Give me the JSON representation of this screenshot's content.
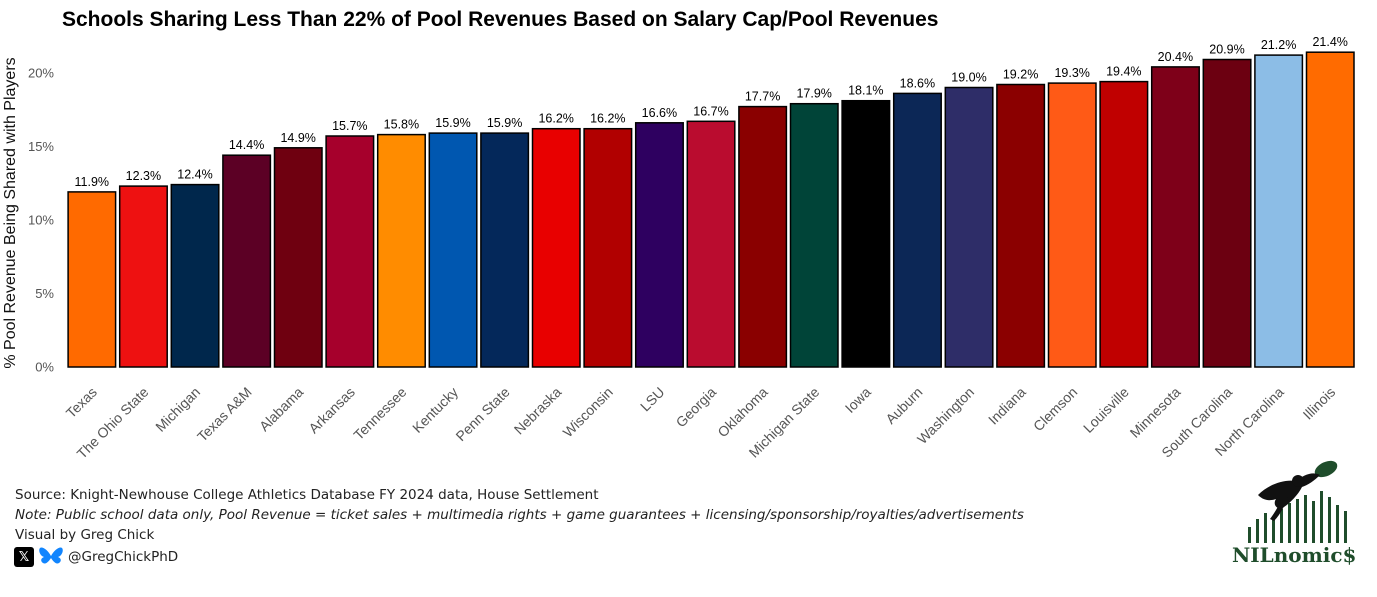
{
  "chart_data": {
    "type": "bar",
    "title": "Schools Sharing Less Than 22% of Pool Revenues Based on Salary Cap/Pool Revenues",
    "ylabel": "% Pool Revenue Being Shared with Players",
    "xlabel": "",
    "ylim": [
      0,
      22.5
    ],
    "yticks": [
      0,
      5,
      10,
      15,
      20
    ],
    "ytick_labels": [
      "0%",
      "5%",
      "10%",
      "15%",
      "20%"
    ],
    "grid": false,
    "categories": [
      "Texas",
      "The Ohio State",
      "Michigan",
      "Texas A&M",
      "Alabama",
      "Arkansas",
      "Tennessee",
      "Kentucky",
      "Penn State",
      "Nebraska",
      "Wisconsin",
      "LSU",
      "Georgia",
      "Oklahoma",
      "Michigan State",
      "Iowa",
      "Auburn",
      "Washington",
      "Indiana",
      "Clemson",
      "Louisville",
      "Minnesota",
      "South Carolina",
      "North Carolina",
      "Illinois"
    ],
    "values": [
      11.9,
      12.3,
      12.4,
      14.4,
      14.9,
      15.7,
      15.8,
      15.9,
      15.9,
      16.2,
      16.2,
      16.6,
      16.7,
      17.7,
      17.9,
      18.1,
      18.6,
      19.0,
      19.2,
      19.3,
      19.4,
      20.4,
      20.9,
      21.2,
      21.4
    ],
    "value_labels": [
      "11.9%",
      "12.3%",
      "12.4%",
      "14.4%",
      "14.9%",
      "15.7%",
      "15.8%",
      "15.9%",
      "15.9%",
      "16.2%",
      "16.2%",
      "16.6%",
      "16.7%",
      "17.7%",
      "17.9%",
      "18.1%",
      "18.6%",
      "19.0%",
      "19.2%",
      "19.3%",
      "19.4%",
      "20.4%",
      "20.9%",
      "21.2%",
      "21.4%"
    ],
    "colors": [
      "#FF6A00",
      "#EE1111",
      "#00274C",
      "#5C0025",
      "#6F0010",
      "#A6002C",
      "#FF8C00",
      "#0057B0",
      "#04285A",
      "#E80000",
      "#B10000",
      "#2E0060",
      "#BA0C2F",
      "#8A0000",
      "#004438",
      "#000000",
      "#0C2756",
      "#2E2D68",
      "#8B0000",
      "#FF5A16",
      "#C00000",
      "#7E0019",
      "#6C0011",
      "#8CBDE6",
      "#FF6B00"
    ]
  },
  "footer": {
    "source": "Source: Knight-Newhouse College Athletics Database FY 2024 data, House Settlement",
    "note": "Note: Public school data only, Pool Revenue = ticket sales + multimedia rights + game guarantees + licensing/sponsorship/royalties/advertisements",
    "credit": "Visual by Greg Chick",
    "x_glyph": "𝕏",
    "handle": "@GregChickPhD"
  },
  "logo": {
    "text": "NILnomic$",
    "icon": "football-player-logo-icon"
  }
}
